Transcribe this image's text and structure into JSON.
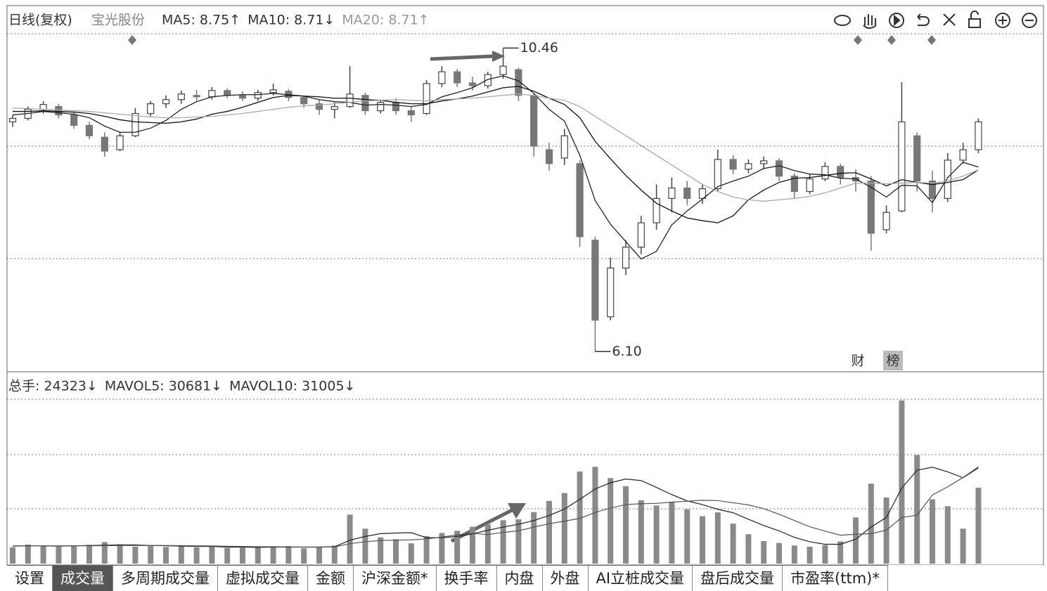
{
  "chart_data": [
    {
      "type": "candlestick",
      "title": "日线(复权)",
      "subtitle": "宝光股份",
      "ylim": [
        5.81,
        11.07
      ],
      "up_color": "#444",
      "down_color": "#777",
      "open": [
        9.4,
        9.45,
        9.58,
        9.62,
        9.5,
        9.35,
        9.18,
        9.0,
        9.2,
        9.52,
        9.66,
        9.72,
        9.78,
        9.76,
        9.85,
        9.78,
        9.74,
        9.82,
        9.84,
        9.75,
        9.66,
        9.58,
        9.62,
        9.78,
        9.56,
        9.68,
        9.56,
        9.52,
        9.95,
        10.12,
        9.96,
        9.92,
        10.08,
        10.15,
        9.78,
        9.0,
        8.88,
        8.8,
        7.7,
        6.6,
        7.3,
        7.6,
        7.95,
        8.3,
        8.45,
        8.3,
        8.44,
        8.86,
        8.72,
        8.8,
        8.84,
        8.62,
        8.4,
        8.58,
        8.76,
        8.6,
        8.55,
        7.85,
        8.12,
        9.2,
        8.55,
        8.3,
        8.85,
        9.0
      ],
      "high": [
        9.5,
        9.62,
        9.7,
        9.66,
        9.55,
        9.4,
        9.25,
        9.25,
        9.6,
        9.7,
        9.78,
        9.85,
        9.86,
        9.9,
        9.88,
        9.84,
        9.86,
        9.95,
        9.87,
        9.78,
        9.72,
        9.68,
        10.2,
        9.82,
        9.72,
        9.74,
        9.62,
        10.0,
        10.2,
        10.16,
        10.05,
        10.12,
        10.46,
        10.18,
        9.8,
        9.1,
        9.3,
        8.85,
        7.75,
        7.45,
        7.7,
        8.05,
        8.5,
        8.6,
        8.55,
        8.5,
        9.0,
        8.92,
        8.86,
        8.9,
        8.88,
        8.66,
        8.65,
        8.82,
        8.8,
        8.72,
        8.62,
        8.2,
        9.97,
        9.25,
        8.7,
        8.95,
        9.1,
        9.45
      ],
      "low": [
        9.33,
        9.42,
        9.52,
        9.45,
        9.3,
        9.15,
        8.9,
        8.98,
        9.18,
        9.48,
        9.6,
        9.66,
        9.7,
        9.72,
        9.74,
        9.7,
        9.7,
        9.78,
        9.7,
        9.6,
        9.5,
        9.45,
        9.6,
        9.5,
        9.52,
        9.5,
        9.4,
        9.5,
        9.9,
        9.9,
        9.85,
        9.88,
        10.02,
        9.7,
        8.9,
        8.7,
        8.78,
        7.6,
        6.1,
        6.55,
        7.2,
        7.5,
        7.85,
        8.1,
        8.2,
        8.22,
        8.4,
        8.65,
        8.66,
        8.72,
        8.55,
        8.3,
        8.36,
        8.55,
        8.5,
        8.4,
        7.55,
        7.8,
        8.1,
        8.4,
        8.1,
        8.25,
        8.8,
        8.95
      ],
      "close": [
        9.45,
        9.58,
        9.65,
        9.5,
        9.35,
        9.2,
        8.98,
        9.2,
        9.52,
        9.66,
        9.72,
        9.8,
        9.76,
        9.85,
        9.78,
        9.74,
        9.82,
        9.86,
        9.75,
        9.66,
        9.58,
        9.62,
        9.8,
        9.56,
        9.68,
        9.56,
        9.5,
        9.95,
        10.12,
        9.96,
        9.92,
        10.08,
        10.2,
        9.78,
        9.05,
        8.8,
        9.2,
        7.75,
        6.55,
        7.3,
        7.6,
        7.95,
        8.3,
        8.45,
        8.3,
        8.44,
        8.86,
        8.72,
        8.8,
        8.84,
        8.62,
        8.4,
        8.58,
        8.76,
        8.6,
        8.55,
        7.8,
        8.1,
        9.4,
        8.55,
        8.3,
        8.85,
        9.0,
        9.4
      ],
      "series": [
        {
          "name": "MA5: 8.75↑",
          "color": "#222",
          "values": [
            9.5,
            9.52,
            9.55,
            9.53,
            9.51,
            9.46,
            9.34,
            9.25,
            9.25,
            9.31,
            9.42,
            9.58,
            9.69,
            9.76,
            9.78,
            9.79,
            9.79,
            9.81,
            9.79,
            9.77,
            9.72,
            9.69,
            9.68,
            9.64,
            9.65,
            9.64,
            9.62,
            9.65,
            9.76,
            9.82,
            9.89,
            10.01,
            10.06,
            9.99,
            9.81,
            9.58,
            9.41,
            8.92,
            8.27,
            7.93,
            7.68,
            7.43,
            7.54,
            7.92,
            8.12,
            8.29,
            8.47,
            8.55,
            8.62,
            8.73,
            8.77,
            8.7,
            8.65,
            8.64,
            8.59,
            8.58,
            8.46,
            8.32,
            8.49,
            8.48,
            8.24,
            8.6,
            8.82,
            8.75
          ]
        },
        {
          "name": "MA10: 8.71↓",
          "color": "#111",
          "values": [
            9.55,
            9.55,
            9.56,
            9.55,
            9.54,
            9.52,
            9.48,
            9.43,
            9.4,
            9.39,
            9.38,
            9.4,
            9.44,
            9.51,
            9.55,
            9.61,
            9.68,
            9.75,
            9.78,
            9.77,
            9.76,
            9.74,
            9.74,
            9.72,
            9.71,
            9.68,
            9.66,
            9.66,
            9.7,
            9.73,
            9.77,
            9.83,
            9.89,
            9.91,
            9.84,
            9.74,
            9.65,
            9.46,
            9.12,
            8.87,
            8.63,
            8.42,
            8.23,
            8.12,
            8.02,
            7.98,
            7.95,
            8.05,
            8.28,
            8.42,
            8.53,
            8.59,
            8.6,
            8.63,
            8.66,
            8.67,
            8.58,
            8.48,
            8.57,
            8.53,
            8.5,
            8.53,
            8.57,
            8.71
          ]
        },
        {
          "name": "MA20: 8.71↑",
          "color": "#aaa",
          "values": [
            9.6,
            9.59,
            9.58,
            9.57,
            9.56,
            9.55,
            9.53,
            9.51,
            9.49,
            9.47,
            9.46,
            9.46,
            9.47,
            9.48,
            9.5,
            9.52,
            9.55,
            9.58,
            9.61,
            9.63,
            9.64,
            9.66,
            9.68,
            9.7,
            9.71,
            9.72,
            9.71,
            9.7,
            9.72,
            9.73,
            9.74,
            9.76,
            9.78,
            9.8,
            9.78,
            9.74,
            9.71,
            9.62,
            9.48,
            9.34,
            9.2,
            9.06,
            8.92,
            8.78,
            8.64,
            8.5,
            8.4,
            8.32,
            8.28,
            8.26,
            8.28,
            8.3,
            8.33,
            8.38,
            8.45,
            8.52,
            8.52,
            8.51,
            8.52,
            8.53,
            8.52,
            8.55,
            8.62,
            8.71
          ]
        }
      ],
      "annotations": [
        {
          "label": "10.46",
          "value": 10.46
        },
        {
          "label": "6.10",
          "value": 6.1
        }
      ]
    },
    {
      "type": "bar",
      "name": "总手: 24323↓",
      "color": "#8a8a8a",
      "ylim": [
        0,
        59000
      ],
      "values": [
        5200,
        6100,
        5600,
        5400,
        5800,
        6000,
        6900,
        6200,
        5400,
        5600,
        5300,
        5900,
        5200,
        5500,
        5000,
        5100,
        5400,
        5200,
        5600,
        4900,
        5300,
        5800,
        15700,
        11200,
        8400,
        7800,
        6500,
        8800,
        9800,
        10500,
        11800,
        12600,
        13900,
        14200,
        16500,
        20100,
        22600,
        29500,
        31000,
        27400,
        24800,
        20300,
        18600,
        19600,
        17400,
        15200,
        16400,
        12800,
        9400,
        7200,
        6600,
        5800,
        5400,
        5900,
        7100,
        14800,
        25600,
        21200,
        52300,
        34800,
        20600,
        18400,
        11200,
        24323
      ],
      "series": [
        {
          "name": "MAVOL5: 30681↓",
          "color": "#222",
          "values": [
            5600,
            5700,
            5700,
            5600,
            5700,
            5800,
            5900,
            6000,
            6000,
            5800,
            5700,
            5600,
            5500,
            5500,
            5300,
            5300,
            5200,
            5300,
            5300,
            5300,
            5300,
            5400,
            7500,
            8700,
            9600,
            9800,
            9900,
            8300,
            8300,
            8700,
            9500,
            10700,
            11700,
            12600,
            13800,
            15400,
            17500,
            20600,
            23900,
            25900,
            27100,
            26600,
            24400,
            22100,
            20100,
            18900,
            17400,
            16300,
            14200,
            12200,
            10500,
            8400,
            7000,
            6200,
            6200,
            7800,
            11700,
            14800,
            24200,
            29900,
            30900,
            29400,
            27500,
            30681
          ]
        },
        {
          "name": "MAVOL10: 31005↓",
          "color": "#555",
          "values": [
            5700,
            5700,
            5700,
            5700,
            5700,
            5700,
            5750,
            5800,
            5800,
            5800,
            5800,
            5750,
            5700,
            5650,
            5550,
            5500,
            5400,
            5400,
            5350,
            5300,
            5300,
            5350,
            6400,
            7000,
            7400,
            7500,
            7600,
            7900,
            8500,
            9200,
            9700,
            9300,
            10000,
            10500,
            11700,
            12800,
            13600,
            14500,
            16400,
            17800,
            18900,
            19200,
            19300,
            19700,
            20000,
            20300,
            20200,
            19500,
            18800,
            17600,
            15800,
            13800,
            11800,
            10400,
            9100,
            9400,
            9600,
            10700,
            14800,
            15500,
            22000,
            24600,
            27600,
            31005
          ]
        }
      ]
    }
  ],
  "markers": [
    "财",
    "榜"
  ],
  "tabs": [
    "设置",
    "成交量",
    "多周期成交量",
    "虚拟成交量",
    "金额",
    "沪深金额*",
    "换手率",
    "内盘",
    "外盘",
    "AI立桩成交量",
    "盘后成交量",
    "市盈率(ttm)*"
  ]
}
